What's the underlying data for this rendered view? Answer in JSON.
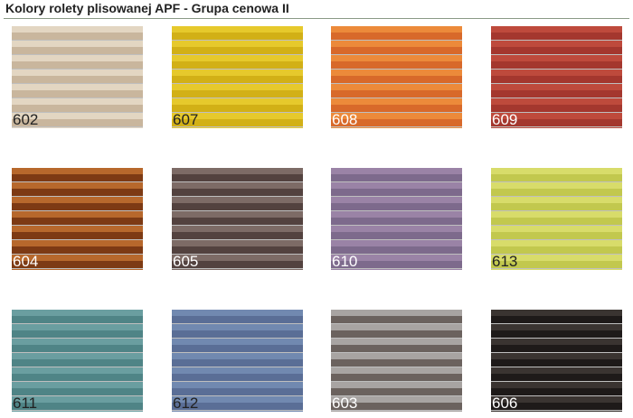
{
  "title": "Kolory rolety plisowanej APF - Grupa cenowa II",
  "swatches": [
    {
      "code": "602",
      "light": "#e3d6c2",
      "dark": "#c9b69d",
      "label_color": "#222"
    },
    {
      "code": "607",
      "light": "#e6c92c",
      "dark": "#d2b016",
      "label_color": "#222"
    },
    {
      "code": "608",
      "light": "#ec8a3a",
      "dark": "#d8692a",
      "label_color": "#fff"
    },
    {
      "code": "609",
      "light": "#be4a3c",
      "dark": "#a4372e",
      "label_color": "#fff"
    },
    {
      "code": "604",
      "light": "#b7682c",
      "dark": "#7d3a14",
      "label_color": "#fff"
    },
    {
      "code": "605",
      "light": "#7d6b66",
      "dark": "#53423f",
      "label_color": "#fff"
    },
    {
      "code": "610",
      "light": "#9a83a6",
      "dark": "#7d6a8c",
      "label_color": "#fff"
    },
    {
      "code": "613",
      "light": "#d8dc6a",
      "dark": "#c2c84e",
      "label_color": "#222"
    },
    {
      "code": "611",
      "light": "#6a9ea0",
      "dark": "#4f8486",
      "label_color": "#222"
    },
    {
      "code": "612",
      "light": "#7189b0",
      "dark": "#5a6e96",
      "label_color": "#222"
    },
    {
      "code": "603",
      "light": "#a8a4a2",
      "dark": "#6b625e",
      "label_color": "#fff"
    },
    {
      "code": "606",
      "light": "#3a3431",
      "dark": "#1e1a19",
      "label_color": "#fff"
    }
  ]
}
